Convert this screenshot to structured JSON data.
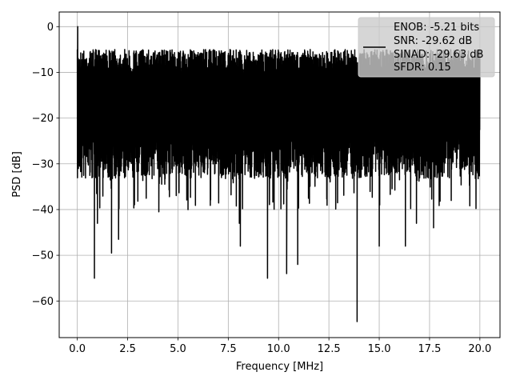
{
  "chart_data": {
    "type": "line",
    "xlabel": "Frequency [MHz]",
    "ylabel": "PSD [dB]",
    "xlim": [
      -0.9,
      21.0
    ],
    "ylim": [
      -68,
      3.2
    ],
    "x_ticks": [
      0.0,
      2.5,
      5.0,
      7.5,
      10.0,
      12.5,
      15.0,
      17.5,
      20.0
    ],
    "x_tick_labels": [
      "0.0",
      "2.5",
      "5.0",
      "7.5",
      "10.0",
      "12.5",
      "15.0",
      "17.5",
      "20.0"
    ],
    "y_ticks": [
      0,
      -10,
      -20,
      -30,
      -40,
      -50,
      -60
    ],
    "y_tick_labels": [
      "0",
      "−10",
      "−20",
      "−30",
      "−40",
      "−50",
      "−60"
    ],
    "grid": true,
    "legend_position": "top-right",
    "series": [
      {
        "name": "ENOB: -5.21 bits\nSNR: -29.62 dB\nSINAD: -29.63 dB\nSFDR: 0.15",
        "legend_lines": [
          "ENOB: -5.21 bits",
          "SNR: -29.62 dB",
          "SINAD: -29.63 dB",
          "SFDR: 0.15"
        ],
        "color": "#000000",
        "x_range": [
          0.0,
          20.0
        ],
        "peak": {
          "x": 0.02,
          "y": 0.0
        },
        "upper_envelope_db": -5,
        "typical_floor_db": -30,
        "dips": [
          {
            "x": 0.85,
            "y": -55.0
          },
          {
            "x": 1.0,
            "y": -43.0
          },
          {
            "x": 1.7,
            "y": -49.5
          },
          {
            "x": 2.05,
            "y": -46.5
          },
          {
            "x": 4.05,
            "y": -40.5
          },
          {
            "x": 5.5,
            "y": -40.0
          },
          {
            "x": 8.05,
            "y": -43.0
          },
          {
            "x": 8.1,
            "y": -48.0
          },
          {
            "x": 9.45,
            "y": -55.0
          },
          {
            "x": 10.4,
            "y": -54.0
          },
          {
            "x": 10.95,
            "y": -52.0
          },
          {
            "x": 13.9,
            "y": -64.5
          },
          {
            "x": 15.0,
            "y": -48.0
          },
          {
            "x": 16.3,
            "y": -48.0
          },
          {
            "x": 16.85,
            "y": -43.0
          },
          {
            "x": 17.7,
            "y": -44.0
          }
        ]
      }
    ]
  }
}
